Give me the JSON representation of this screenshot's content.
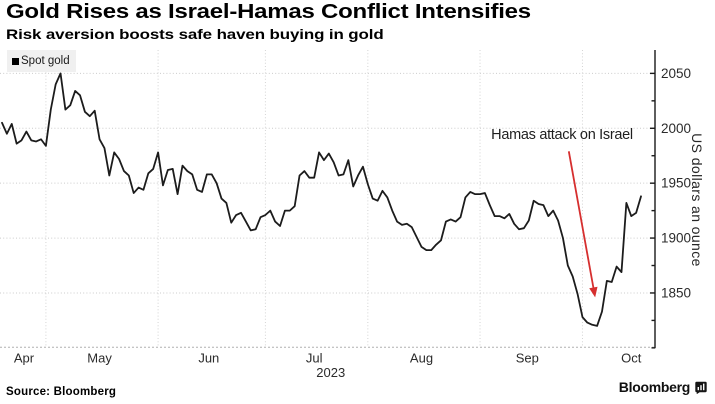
{
  "chart_data": {
    "type": "line",
    "title": "Gold Rises as Israel-Hamas Conflict Intensifies",
    "subtitle": "Risk aversion boosts safe haven buying in gold",
    "legend": [
      {
        "label": "Spot gold",
        "swatch_color": "#000000"
      }
    ],
    "grid": {
      "horizontal": true,
      "vertical": true,
      "style": "dotted",
      "color": "#cccccc"
    },
    "y_axis": {
      "title": "US dollars an ounce",
      "side": "right",
      "ticks": [
        2050,
        2000,
        1950,
        1900,
        1850
      ],
      "minor_ticks": [
        2025,
        1975,
        1925,
        1875,
        1825,
        1800
      ],
      "range": [
        1800.6,
        2071.3
      ],
      "line_color": "#1a1a1a",
      "label_color": "#2b2b2b"
    },
    "x_axis": {
      "labels": [
        "Apr",
        "May",
        "Jun",
        "Jul",
        "Aug",
        "Sep",
        "Oct"
      ],
      "label_indices": [
        4.5,
        20,
        42.4,
        64,
        86,
        107.7,
        129
      ],
      "year_label": "2023",
      "year_label_index": 67.4,
      "label_color": "#2b2b2b"
    },
    "annotation": {
      "text": "Hamas attack on Israel",
      "text_at": {
        "index": 114.8,
        "value": 1993.5
      },
      "arrow_color": "#d62f2f",
      "arrow_from": {
        "index": 116.2,
        "value": 1979
      },
      "arrow_to": {
        "index": 121.6,
        "value": 1846
      }
    },
    "series": [
      {
        "name": "Spot gold",
        "color": "#1c1c1c",
        "unit": "USD/oz",
        "points": [
          [
            "2023-04-18",
            2005
          ],
          [
            "2023-04-19",
            1995
          ],
          [
            "2023-04-20",
            2004
          ],
          [
            "2023-04-21",
            1986
          ],
          [
            "2023-04-24",
            1989
          ],
          [
            "2023-04-25",
            1997
          ],
          [
            "2023-04-26",
            1989
          ],
          [
            "2023-04-27",
            1988
          ],
          [
            "2023-04-28",
            1990
          ],
          [
            "2023-05-01",
            1984
          ],
          [
            "2023-05-02",
            2017
          ],
          [
            "2023-05-03",
            2040
          ],
          [
            "2023-05-04",
            2050
          ],
          [
            "2023-05-05",
            2017
          ],
          [
            "2023-05-08",
            2021
          ],
          [
            "2023-05-09",
            2034
          ],
          [
            "2023-05-10",
            2030
          ],
          [
            "2023-05-11",
            2015
          ],
          [
            "2023-05-12",
            2011
          ],
          [
            "2023-05-15",
            2016
          ],
          [
            "2023-05-16",
            1990
          ],
          [
            "2023-05-17",
            1982
          ],
          [
            "2023-05-18",
            1957
          ],
          [
            "2023-05-19",
            1978
          ],
          [
            "2023-05-22",
            1972
          ],
          [
            "2023-05-23",
            1961
          ],
          [
            "2023-05-24",
            1957
          ],
          [
            "2023-05-25",
            1941
          ],
          [
            "2023-05-26",
            1946
          ],
          [
            "2023-05-29",
            1944
          ],
          [
            "2023-05-30",
            1959
          ],
          [
            "2023-05-31",
            1963
          ],
          [
            "2023-06-01",
            1978
          ],
          [
            "2023-06-02",
            1948
          ],
          [
            "2023-06-05",
            1962
          ],
          [
            "2023-06-06",
            1963
          ],
          [
            "2023-06-07",
            1940
          ],
          [
            "2023-06-08",
            1966
          ],
          [
            "2023-06-09",
            1961
          ],
          [
            "2023-06-12",
            1958
          ],
          [
            "2023-06-13",
            1944
          ],
          [
            "2023-06-14",
            1942
          ],
          [
            "2023-06-15",
            1958
          ],
          [
            "2023-06-16",
            1958
          ],
          [
            "2023-06-19",
            1950
          ],
          [
            "2023-06-20",
            1936
          ],
          [
            "2023-06-21",
            1932
          ],
          [
            "2023-06-22",
            1914
          ],
          [
            "2023-06-23",
            1921
          ],
          [
            "2023-06-26",
            1923
          ],
          [
            "2023-06-27",
            1915
          ],
          [
            "2023-06-28",
            1907
          ],
          [
            "2023-06-29",
            1908
          ],
          [
            "2023-06-30",
            1919
          ],
          [
            "2023-07-03",
            1921
          ],
          [
            "2023-07-04",
            1925
          ],
          [
            "2023-07-05",
            1915
          ],
          [
            "2023-07-06",
            1911
          ],
          [
            "2023-07-07",
            1925
          ],
          [
            "2023-07-10",
            1925
          ],
          [
            "2023-07-11",
            1929
          ],
          [
            "2023-07-12",
            1957
          ],
          [
            "2023-07-13",
            1961
          ],
          [
            "2023-07-14",
            1955
          ],
          [
            "2023-07-17",
            1955
          ],
          [
            "2023-07-18",
            1978
          ],
          [
            "2023-07-19",
            1971
          ],
          [
            "2023-07-20",
            1977
          ],
          [
            "2023-07-21",
            1969
          ],
          [
            "2023-07-24",
            1957
          ],
          [
            "2023-07-25",
            1958
          ],
          [
            "2023-07-26",
            1971
          ],
          [
            "2023-07-27",
            1947
          ],
          [
            "2023-07-28",
            1957
          ],
          [
            "2023-07-31",
            1965
          ],
          [
            "2023-08-01",
            1949
          ],
          [
            "2023-08-02",
            1936
          ],
          [
            "2023-08-03",
            1934
          ],
          [
            "2023-08-04",
            1943
          ],
          [
            "2023-08-07",
            1937
          ],
          [
            "2023-08-08",
            1925
          ],
          [
            "2023-08-09",
            1915
          ],
          [
            "2023-08-10",
            1912
          ],
          [
            "2023-08-11",
            1913
          ],
          [
            "2023-08-14",
            1910
          ],
          [
            "2023-08-15",
            1901
          ],
          [
            "2023-08-16",
            1892
          ],
          [
            "2023-08-17",
            1889
          ],
          [
            "2023-08-18",
            1889
          ],
          [
            "2023-08-21",
            1894
          ],
          [
            "2023-08-22",
            1898
          ],
          [
            "2023-08-23",
            1915
          ],
          [
            "2023-08-24",
            1917
          ],
          [
            "2023-08-25",
            1915
          ],
          [
            "2023-08-28",
            1919
          ],
          [
            "2023-08-29",
            1937
          ],
          [
            "2023-08-30",
            1942
          ],
          [
            "2023-08-31",
            1940
          ],
          [
            "2023-09-01",
            1940
          ],
          [
            "2023-09-04",
            1941
          ],
          [
            "2023-09-05",
            1930
          ],
          [
            "2023-09-06",
            1920
          ],
          [
            "2023-09-07",
            1920
          ],
          [
            "2023-09-08",
            1918
          ],
          [
            "2023-09-11",
            1922
          ],
          [
            "2023-09-12",
            1913
          ],
          [
            "2023-09-13",
            1908
          ],
          [
            "2023-09-14",
            1909
          ],
          [
            "2023-09-15",
            1916
          ],
          [
            "2023-09-18",
            1934
          ],
          [
            "2023-09-19",
            1931
          ],
          [
            "2023-09-20",
            1930
          ],
          [
            "2023-09-21",
            1920
          ],
          [
            "2023-09-22",
            1925
          ],
          [
            "2023-09-25",
            1916
          ],
          [
            "2023-09-26",
            1900
          ],
          [
            "2023-09-27",
            1875
          ],
          [
            "2023-09-28",
            1865
          ],
          [
            "2023-09-29",
            1849
          ],
          [
            "2023-10-02",
            1828
          ],
          [
            "2023-10-03",
            1823
          ],
          [
            "2023-10-04",
            1821
          ],
          [
            "2023-10-05",
            1820
          ],
          [
            "2023-10-06",
            1833
          ],
          [
            "2023-10-09",
            1861
          ],
          [
            "2023-10-10",
            1860
          ],
          [
            "2023-10-11",
            1874
          ],
          [
            "2023-10-12",
            1869
          ],
          [
            "2023-10-13",
            1932
          ],
          [
            "2023-10-16",
            1920
          ],
          [
            "2023-10-17",
            1923
          ],
          [
            "2023-10-18",
            1938
          ]
        ]
      }
    ]
  },
  "footer": {
    "source": "Source: Bloomberg",
    "brand": "Bloomberg"
  }
}
